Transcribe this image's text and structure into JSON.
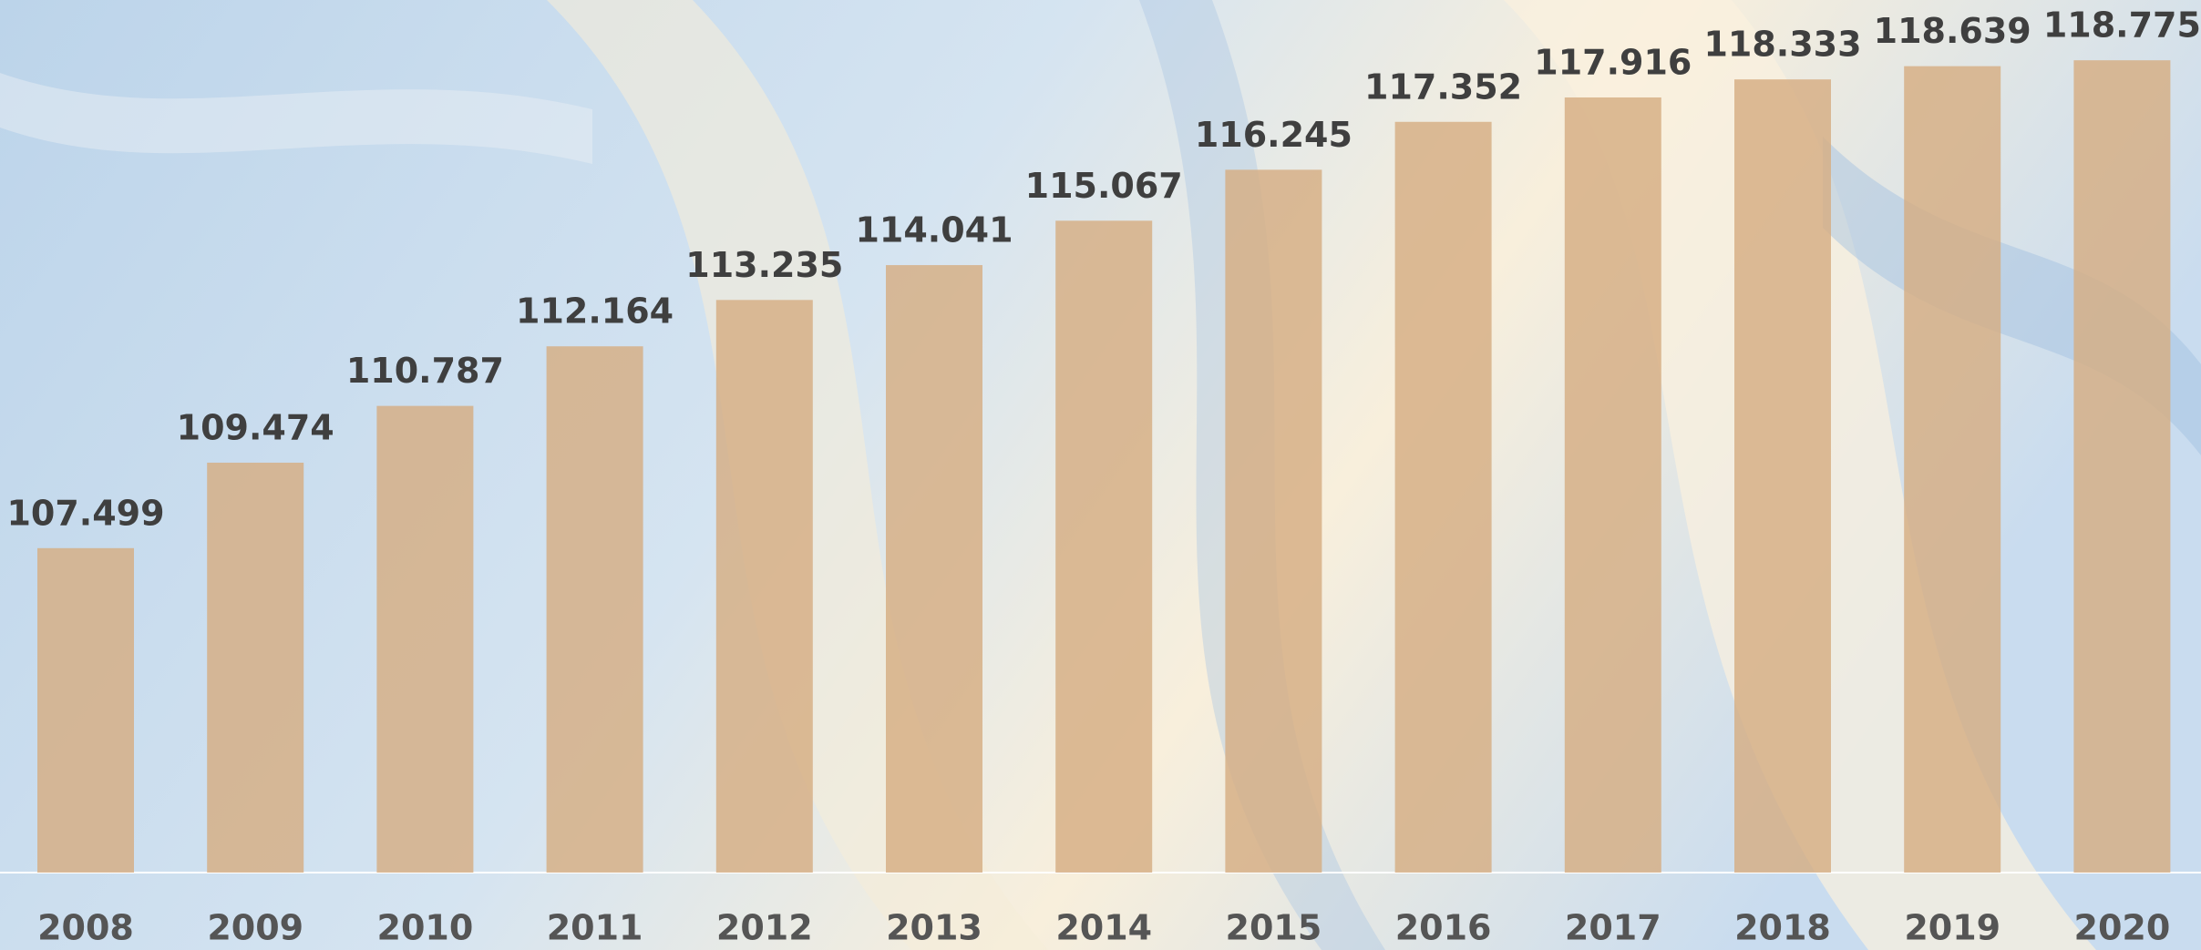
{
  "chart_data": {
    "type": "bar",
    "categories": [
      "2008",
      "2009",
      "2010",
      "2011",
      "2012",
      "2013",
      "2014",
      "2015",
      "2016",
      "2017",
      "2018",
      "2019",
      "2020"
    ],
    "values": [
      107.499,
      109.474,
      110.787,
      112.164,
      113.235,
      114.041,
      115.067,
      116.245,
      117.352,
      117.916,
      118.333,
      118.639,
      118.775
    ],
    "color": "#d6ad82",
    "ylim": [
      100,
      120
    ]
  }
}
